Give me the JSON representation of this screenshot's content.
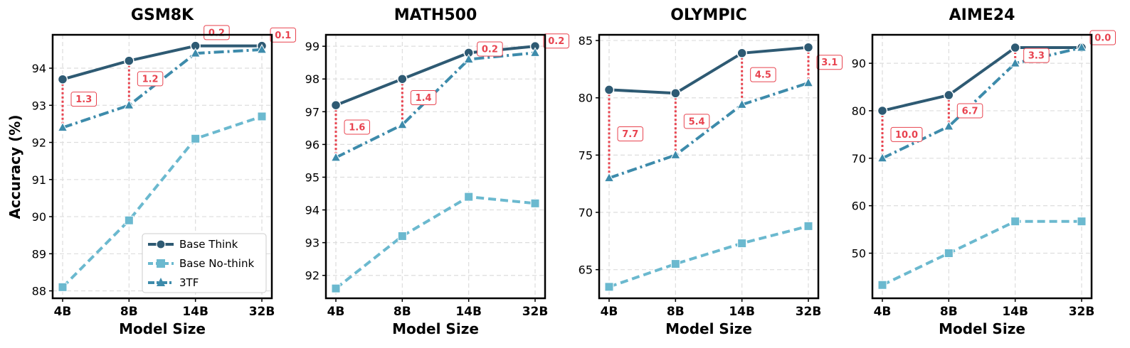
{
  "figure": {
    "ylabel": "Accuracy (%)",
    "xlabel": "Model Size",
    "legend": {
      "placement": "lower-right of first panel",
      "entries": [
        "Base Think",
        "Base No-think",
        "3TF"
      ]
    }
  },
  "colors": {
    "base_think": "#2e5a73",
    "base_nothink": "#6bb9cf",
    "three_tf": "#3d8bab",
    "gap": "#e8434f",
    "grid": "#dddddd"
  },
  "chart_data": [
    {
      "type": "line",
      "title": "GSM8K",
      "categories": [
        "4B",
        "8B",
        "14B",
        "32B"
      ],
      "xlabel": "Model Size",
      "ylabel": "Accuracy (%)",
      "ylim": [
        87.8,
        94.9
      ],
      "yticks": [
        88,
        89,
        90,
        91,
        92,
        93,
        94
      ],
      "grid": true,
      "series": [
        {
          "name": "Base Think",
          "values": [
            93.7,
            94.2,
            94.6,
            94.6
          ]
        },
        {
          "name": "Base No-think",
          "values": [
            88.1,
            89.9,
            92.1,
            92.7
          ]
        },
        {
          "name": "3TF",
          "values": [
            92.4,
            93.0,
            94.4,
            94.5
          ]
        }
      ],
      "gap_labels": [
        "1.3",
        "1.2",
        "0.2",
        "0.1"
      ]
    },
    {
      "type": "line",
      "title": "MATH500",
      "categories": [
        "4B",
        "8B",
        "14B",
        "32B"
      ],
      "xlabel": "Model Size",
      "ylabel": "",
      "ylim": [
        91.3,
        99.35
      ],
      "yticks": [
        92,
        93,
        94,
        95,
        96,
        97,
        98,
        99
      ],
      "grid": true,
      "series": [
        {
          "name": "Base Think",
          "values": [
            97.2,
            98.0,
            98.8,
            99.0
          ]
        },
        {
          "name": "Base No-think",
          "values": [
            91.6,
            93.2,
            94.4,
            94.2
          ]
        },
        {
          "name": "3TF",
          "values": [
            95.6,
            96.6,
            98.6,
            98.8
          ]
        }
      ],
      "gap_labels": [
        "1.6",
        "1.4",
        "0.2",
        "0.2"
      ]
    },
    {
      "type": "line",
      "title": "OLYMPIC",
      "categories": [
        "4B",
        "8B",
        "14B",
        "32B"
      ],
      "xlabel": "Model Size",
      "ylabel": "",
      "ylim": [
        62.5,
        85.5
      ],
      "yticks": [
        65,
        70,
        75,
        80,
        85
      ],
      "grid": true,
      "series": [
        {
          "name": "Base Think",
          "values": [
            80.7,
            80.4,
            83.9,
            84.4
          ]
        },
        {
          "name": "Base No-think",
          "values": [
            63.5,
            65.5,
            67.3,
            68.8
          ]
        },
        {
          "name": "3TF",
          "values": [
            73.0,
            75.0,
            79.4,
            81.3
          ]
        }
      ],
      "gap_labels": [
        "7.7",
        "5.4",
        "4.5",
        "3.1"
      ]
    },
    {
      "type": "line",
      "title": "AIME24",
      "categories": [
        "4B",
        "8B",
        "14B",
        "32B"
      ],
      "xlabel": "Model Size",
      "ylabel": "",
      "ylim": [
        40.5,
        96.0
      ],
      "yticks": [
        50,
        60,
        70,
        80,
        90
      ],
      "grid": true,
      "series": [
        {
          "name": "Base Think",
          "values": [
            80.0,
            83.3,
            93.3,
            93.3
          ]
        },
        {
          "name": "Base No-think",
          "values": [
            43.3,
            50.0,
            56.7,
            56.7
          ]
        },
        {
          "name": "3TF",
          "values": [
            70.0,
            76.7,
            90.0,
            93.3
          ]
        }
      ],
      "gap_labels": [
        "10.0",
        "6.7",
        "3.3",
        "0.0"
      ]
    }
  ]
}
